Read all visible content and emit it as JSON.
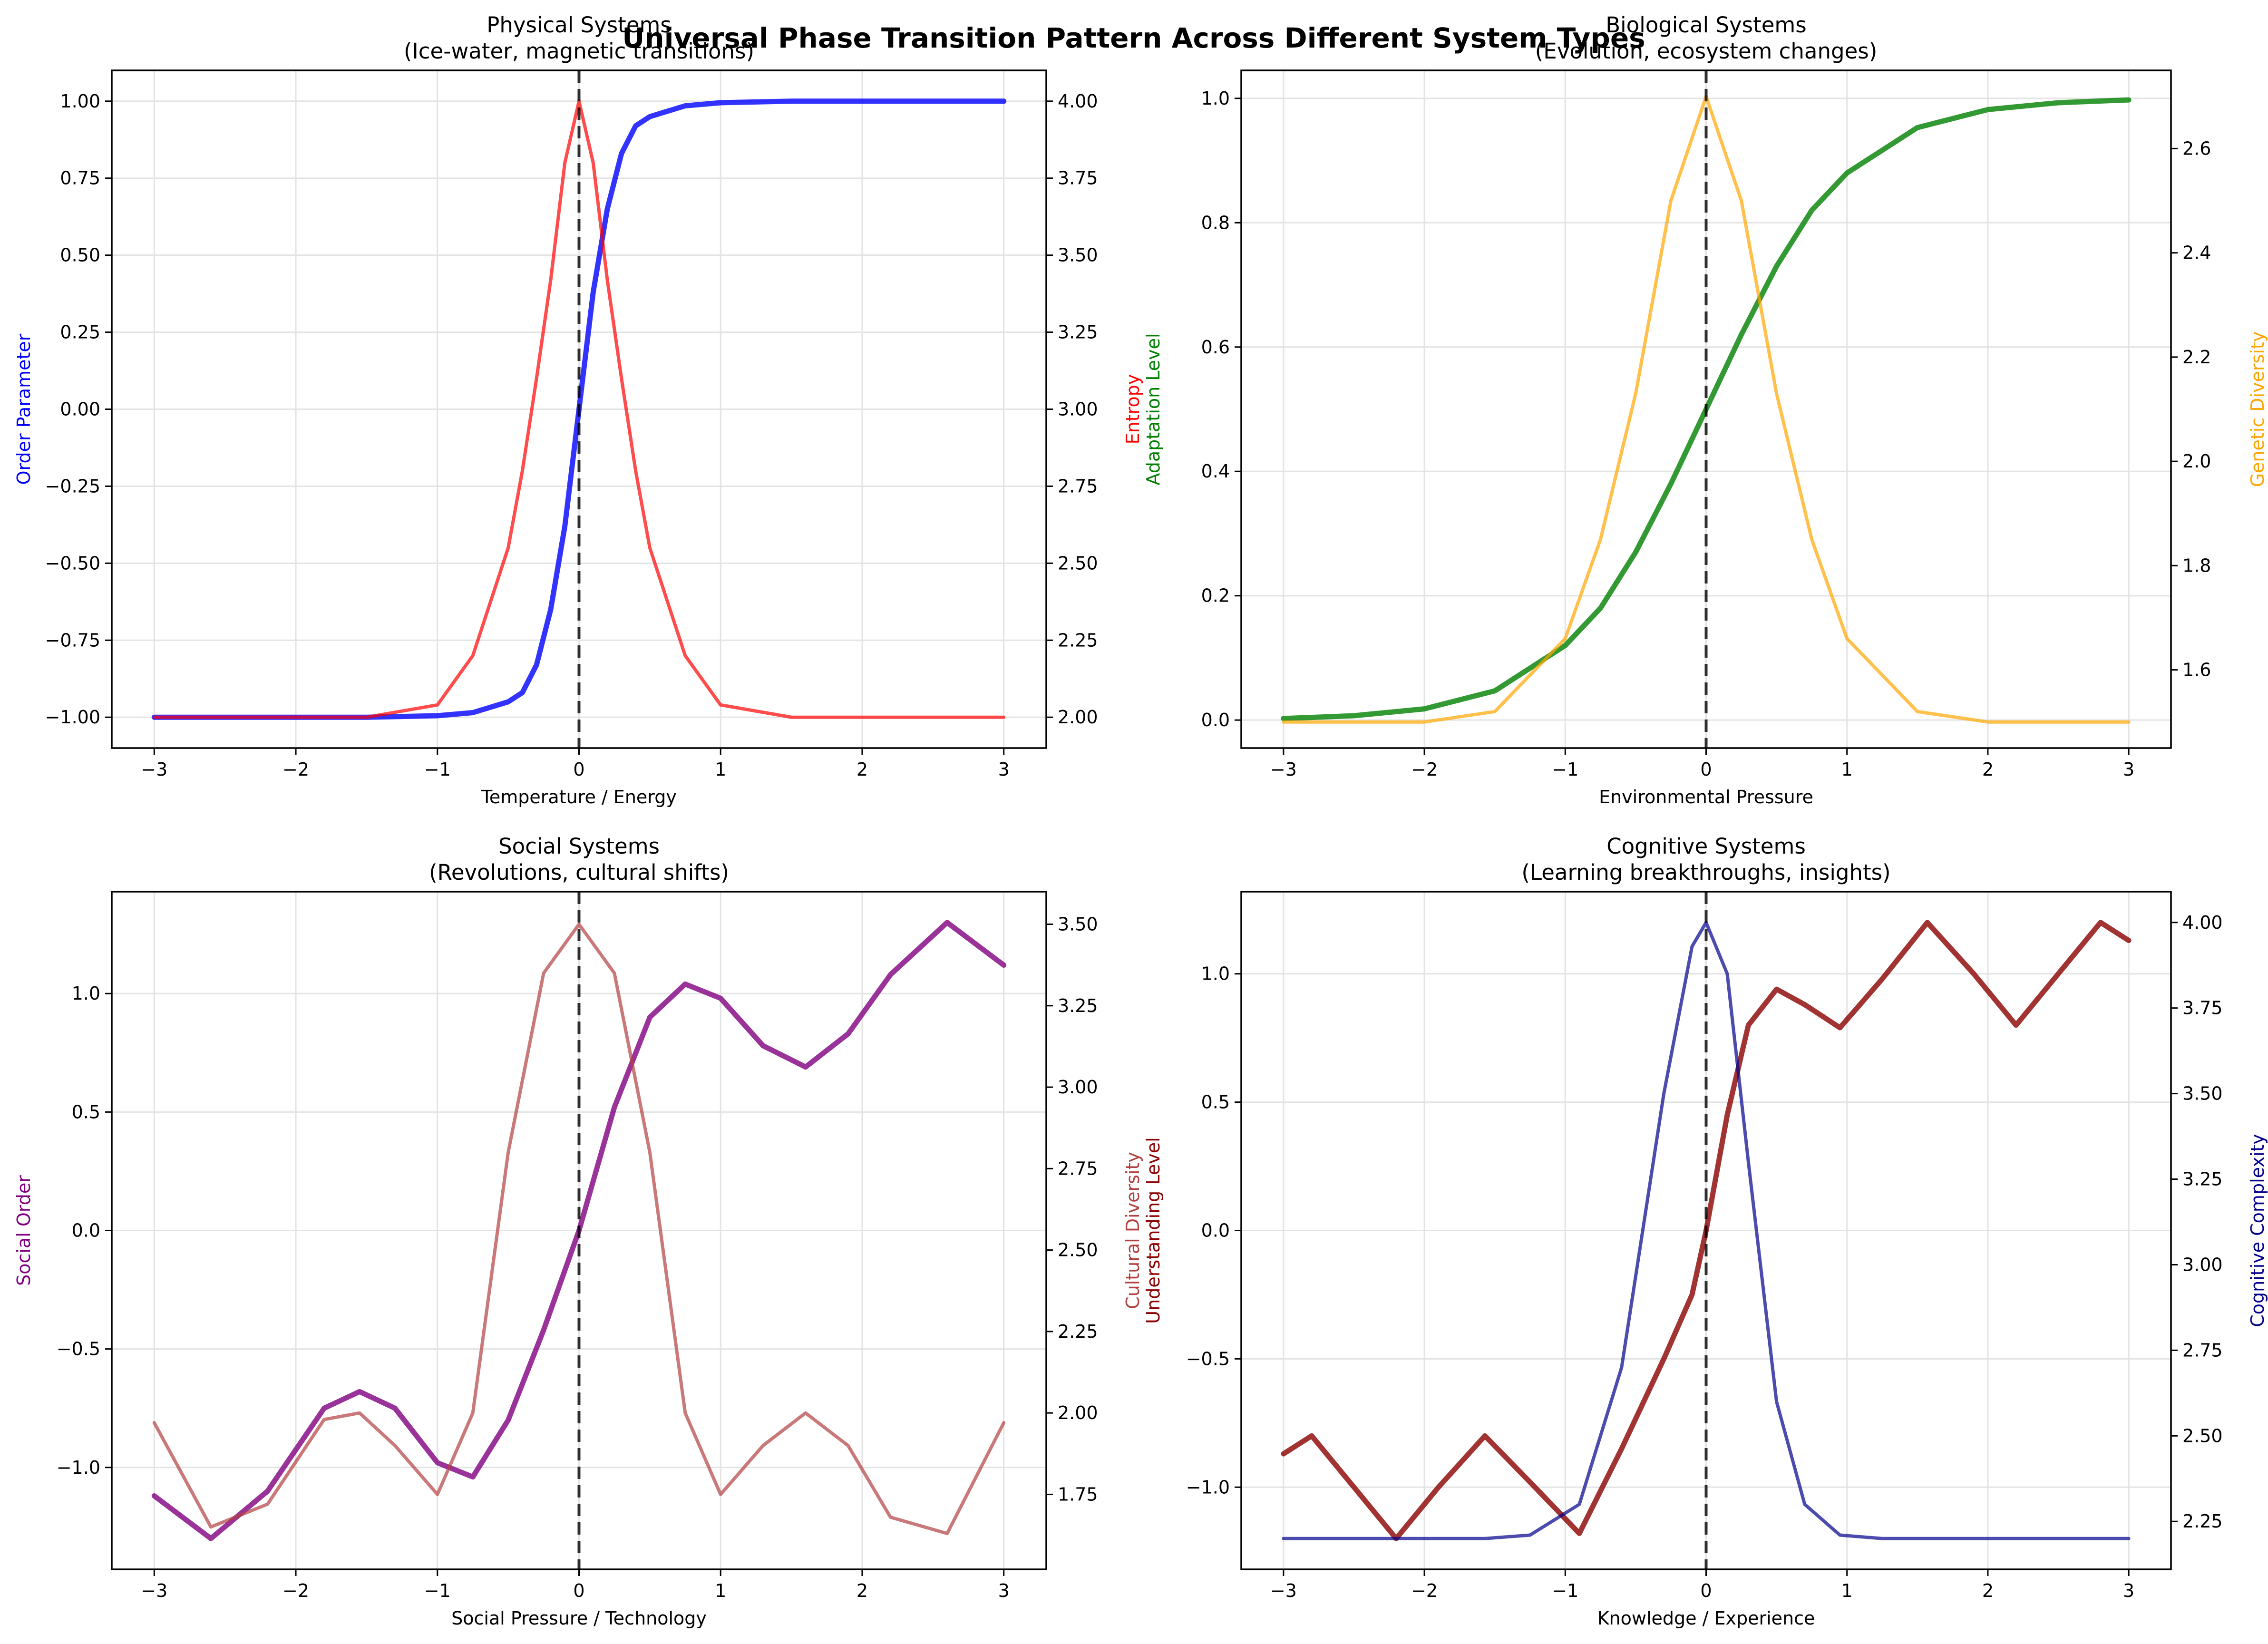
{
  "suptitle": "Universal Phase Transition Pattern Across Different System Types",
  "colors": {
    "physical_left": "#0000ff",
    "physical_right": "#ff0000",
    "bio_left": "#008000",
    "bio_right": "#ffa500",
    "social_left": "#800080",
    "social_right": "#b24040",
    "cog_left": "#8b0000",
    "cog_right": "#00008b",
    "critical_line": "#000000"
  },
  "chart_data": [
    {
      "type": "line",
      "title": "Physical Systems",
      "subtitle": "(Ice-water, magnetic transitions)",
      "xlabel": "Temperature / Energy",
      "ylabel_left": "Order Parameter",
      "ylabel_right": "Entropy",
      "xlim": [
        -3.3,
        3.3
      ],
      "ylim_left": [
        -1.1,
        1.1
      ],
      "ylim_right": [
        1.9,
        4.1
      ],
      "xticks": [
        "−3",
        "−2",
        "−1",
        "0",
        "1",
        "2",
        "3"
      ],
      "yticks_left": [
        "−1.00",
        "−0.75",
        "−0.50",
        "−0.25",
        "0.00",
        "0.25",
        "0.50",
        "0.75",
        "1.00"
      ],
      "yticks_right": [
        "2.00",
        "2.25",
        "2.50",
        "2.75",
        "3.00",
        "3.25",
        "3.50",
        "3.75",
        "4.00"
      ],
      "critical_x": 0,
      "grid": true,
      "x": [
        -3,
        -2.5,
        -2,
        -1.5,
        -1,
        -0.75,
        -0.5,
        -0.4,
        -0.3,
        -0.2,
        -0.1,
        0,
        0.1,
        0.2,
        0.3,
        0.4,
        0.5,
        0.75,
        1,
        1.5,
        2,
        2.5,
        3
      ],
      "series": [
        {
          "axis": "left",
          "values": [
            -1,
            -1,
            -1,
            -1,
            -0.995,
            -0.985,
            -0.95,
            -0.92,
            -0.83,
            -0.65,
            -0.38,
            0,
            0.38,
            0.65,
            0.83,
            0.92,
            0.95,
            0.985,
            0.995,
            1,
            1,
            1,
            1
          ]
        },
        {
          "axis": "right",
          "values": [
            2,
            2,
            2,
            2,
            2.04,
            2.2,
            2.55,
            2.8,
            3.1,
            3.42,
            3.8,
            4,
            3.8,
            3.42,
            3.1,
            2.8,
            2.55,
            2.2,
            2.04,
            2,
            2,
            2,
            2
          ]
        }
      ]
    },
    {
      "type": "line",
      "title": "Biological Systems",
      "subtitle": "(Evolution, ecosystem changes)",
      "xlabel": "Environmental Pressure",
      "ylabel_left": "Adaptation Level",
      "ylabel_right": "Genetic Diversity",
      "xlim": [
        -3.3,
        3.3
      ],
      "ylim_left": [
        -0.045,
        1.045
      ],
      "ylim_right": [
        1.45,
        2.75
      ],
      "xticks": [
        "−3",
        "−2",
        "−1",
        "0",
        "1",
        "2",
        "3"
      ],
      "yticks_left": [
        "0.0",
        "0.2",
        "0.4",
        "0.6",
        "0.8",
        "1.0"
      ],
      "yticks_right": [
        "1.6",
        "1.8",
        "2.0",
        "2.2",
        "2.4",
        "2.6"
      ],
      "critical_x": 0,
      "grid": true,
      "x": [
        -3,
        -2.5,
        -2,
        -1.5,
        -1,
        -0.75,
        -0.5,
        -0.25,
        0,
        0.25,
        0.5,
        0.75,
        1,
        1.5,
        2,
        2.5,
        3
      ],
      "series": [
        {
          "axis": "left",
          "values": [
            0.0025,
            0.007,
            0.018,
            0.047,
            0.12,
            0.18,
            0.27,
            0.38,
            0.5,
            0.62,
            0.73,
            0.82,
            0.88,
            0.953,
            0.982,
            0.993,
            0.9975
          ]
        },
        {
          "axis": "right",
          "values": [
            1.5,
            1.5,
            1.5,
            1.52,
            1.66,
            1.85,
            2.13,
            2.5,
            2.7,
            2.5,
            2.13,
            1.85,
            1.66,
            1.52,
            1.5,
            1.5,
            1.5
          ]
        }
      ]
    },
    {
      "type": "line",
      "title": "Social Systems",
      "subtitle": "(Revolutions, cultural shifts)",
      "xlabel": "Social Pressure / Technology",
      "ylabel_left": "Social Order",
      "ylabel_right": "Cultural Diversity",
      "xlim": [
        -3.3,
        3.3
      ],
      "ylim_left": [
        -1.43,
        1.43
      ],
      "ylim_right": [
        1.52,
        3.6
      ],
      "xticks": [
        "−3",
        "−2",
        "−1",
        "0",
        "1",
        "2",
        "3"
      ],
      "yticks_left": [
        "−1.0",
        "−0.5",
        "0.0",
        "0.5",
        "1.0"
      ],
      "yticks_right": [
        "1.75",
        "2.00",
        "2.25",
        "2.50",
        "2.75",
        "3.00",
        "3.25",
        "3.50"
      ],
      "critical_x": 0,
      "grid": true,
      "x": [
        -3,
        -2.6,
        -2.2,
        -1.8,
        -1.55,
        -1.3,
        -1,
        -0.75,
        -0.5,
        -0.25,
        0,
        0.25,
        0.5,
        0.75,
        1,
        1.3,
        1.6,
        1.9,
        2.2,
        2.6,
        3
      ],
      "series": [
        {
          "axis": "left",
          "values": [
            -1.12,
            -1.3,
            -1.1,
            -0.75,
            -0.68,
            -0.75,
            -0.98,
            -1.04,
            -0.8,
            -0.42,
            0,
            0.52,
            0.9,
            1.04,
            0.98,
            0.78,
            0.69,
            0.83,
            1.08,
            1.3,
            1.12
          ]
        },
        {
          "axis": "right",
          "values": [
            1.97,
            1.65,
            1.72,
            1.98,
            2.0,
            1.9,
            1.75,
            2.0,
            2.8,
            3.35,
            3.5,
            3.35,
            2.8,
            2.0,
            1.75,
            1.9,
            2.0,
            1.9,
            1.68,
            1.63,
            1.97
          ]
        }
      ]
    },
    {
      "type": "line",
      "title": "Cognitive Systems",
      "subtitle": "(Learning breakthroughs, insights)",
      "xlabel": "Knowledge / Experience",
      "ylabel_left": "Understanding Level",
      "ylabel_right": "Cognitive Complexity",
      "xlim": [
        -3.3,
        3.3
      ],
      "ylim_left": [
        -1.32,
        1.32
      ],
      "ylim_right": [
        2.11,
        4.09
      ],
      "xticks": [
        "−3",
        "−2",
        "−1",
        "0",
        "1",
        "2",
        "3"
      ],
      "yticks_left": [
        "−1.0",
        "−0.5",
        "0.0",
        "0.5",
        "1.0"
      ],
      "yticks_right": [
        "2.25",
        "2.50",
        "2.75",
        "3.00",
        "3.25",
        "3.50",
        "3.75",
        "4.00"
      ],
      "critical_x": 0,
      "grid": true,
      "x": [
        -3,
        -2.8,
        -2.5,
        -2.2,
        -1.9,
        -1.57,
        -1.25,
        -0.9,
        -0.6,
        -0.3,
        -0.1,
        0,
        0.15,
        0.3,
        0.5,
        0.7,
        0.95,
        1.25,
        1.57,
        1.9,
        2.2,
        2.5,
        2.8,
        3
      ],
      "series": [
        {
          "axis": "left",
          "values": [
            -0.87,
            -0.8,
            -1.0,
            -1.2,
            -1.0,
            -0.8,
            -0.98,
            -1.18,
            -0.85,
            -0.5,
            -0.25,
            0,
            0.45,
            0.8,
            0.94,
            0.88,
            0.79,
            0.98,
            1.2,
            1.0,
            0.8,
            1.0,
            1.2,
            1.13
          ]
        },
        {
          "axis": "right",
          "values": [
            2.2,
            2.2,
            2.2,
            2.2,
            2.2,
            2.2,
            2.21,
            2.3,
            2.7,
            3.5,
            3.93,
            4.0,
            3.85,
            3.3,
            2.6,
            2.3,
            2.21,
            2.2,
            2.2,
            2.2,
            2.2,
            2.2,
            2.2,
            2.2
          ]
        }
      ]
    }
  ]
}
